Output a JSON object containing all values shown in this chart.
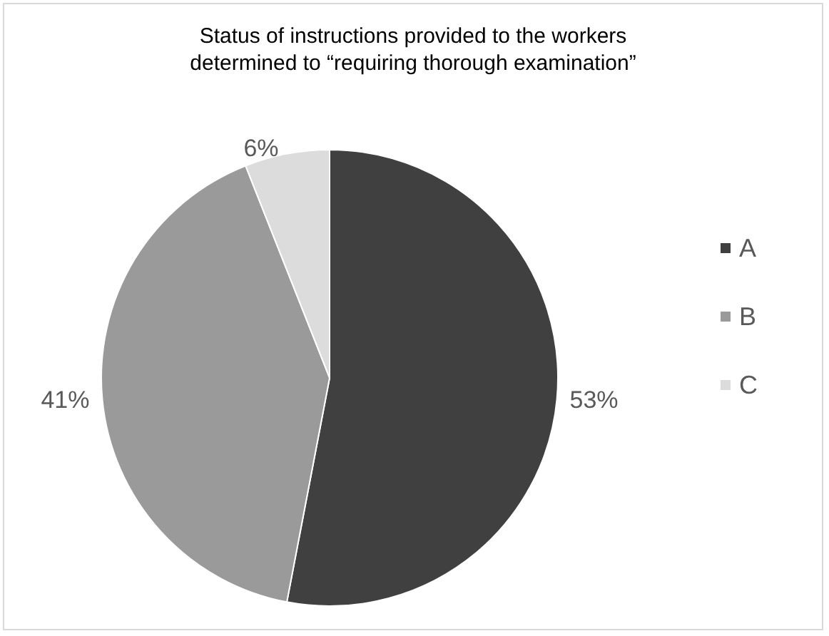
{
  "chart_data": {
    "type": "pie",
    "title": "Status of instructions provided to the workers\ndetermined to “requiring thorough examination”",
    "categories": [
      "A",
      "B",
      "C"
    ],
    "values": [
      53,
      41,
      6
    ],
    "colors": [
      "#404040",
      "#9a9a9a",
      "#dcdcdc"
    ],
    "value_labels": [
      "53%",
      "41%",
      "6%"
    ],
    "legend": "right"
  }
}
